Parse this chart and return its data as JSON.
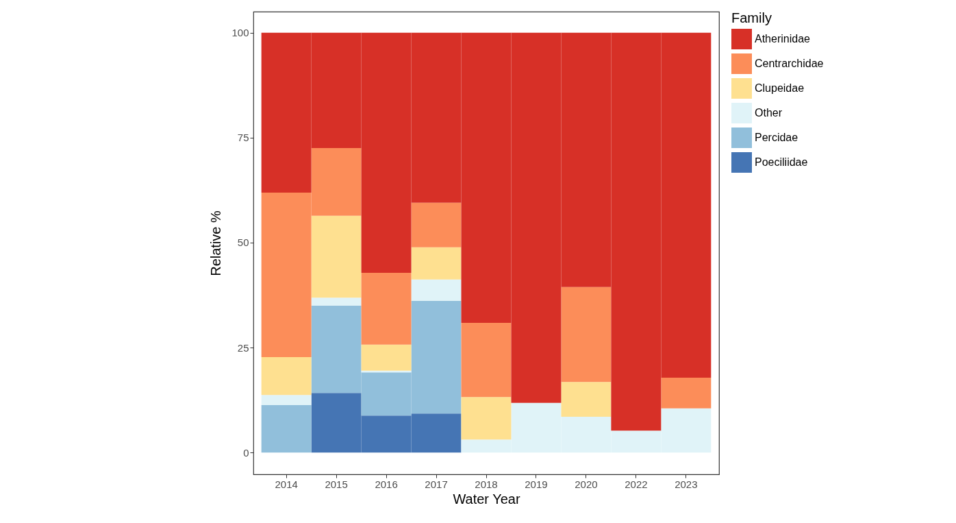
{
  "chart_data": {
    "type": "bar",
    "stacked": true,
    "xlabel": "Water Year",
    "ylabel": "Relative %",
    "legend_title": "Family",
    "legend": "right",
    "grid": false,
    "categories": [
      "2014",
      "2015",
      "2016",
      "2017",
      "2018",
      "2019",
      "2020",
      "2022",
      "2023"
    ],
    "ylim": [
      -5.2,
      105
    ],
    "yticks": [
      0,
      25,
      50,
      75,
      100
    ],
    "series": [
      {
        "name": "Poeciliidae",
        "color": "#4575b4",
        "values": [
          0,
          14.2,
          8.8,
          9.3,
          0,
          0,
          0,
          0,
          0
        ]
      },
      {
        "name": "Percidae",
        "color": "#91bfdb",
        "values": [
          11.3,
          20.8,
          10.3,
          26.8,
          0,
          0,
          0,
          0,
          0
        ]
      },
      {
        "name": "Other",
        "color": "#e0f3f8",
        "values": [
          2.4,
          1.9,
          0.4,
          5.1,
          3.1,
          11.8,
          8.5,
          5.2,
          10.5
        ]
      },
      {
        "name": "Clupeidae",
        "color": "#fee090",
        "values": [
          9.0,
          19.5,
          6.2,
          7.7,
          10.1,
          0,
          8.3,
          0,
          0
        ]
      },
      {
        "name": "Centrarchidae",
        "color": "#fc8d59",
        "values": [
          39.2,
          16.1,
          17.1,
          10.6,
          17.7,
          0,
          22.6,
          0,
          7.3
        ]
      },
      {
        "name": "Atherinidae",
        "color": "#d73027",
        "values": [
          38.1,
          27.5,
          57.2,
          40.5,
          69.1,
          88.2,
          60.6,
          94.8,
          82.2
        ]
      }
    ]
  }
}
